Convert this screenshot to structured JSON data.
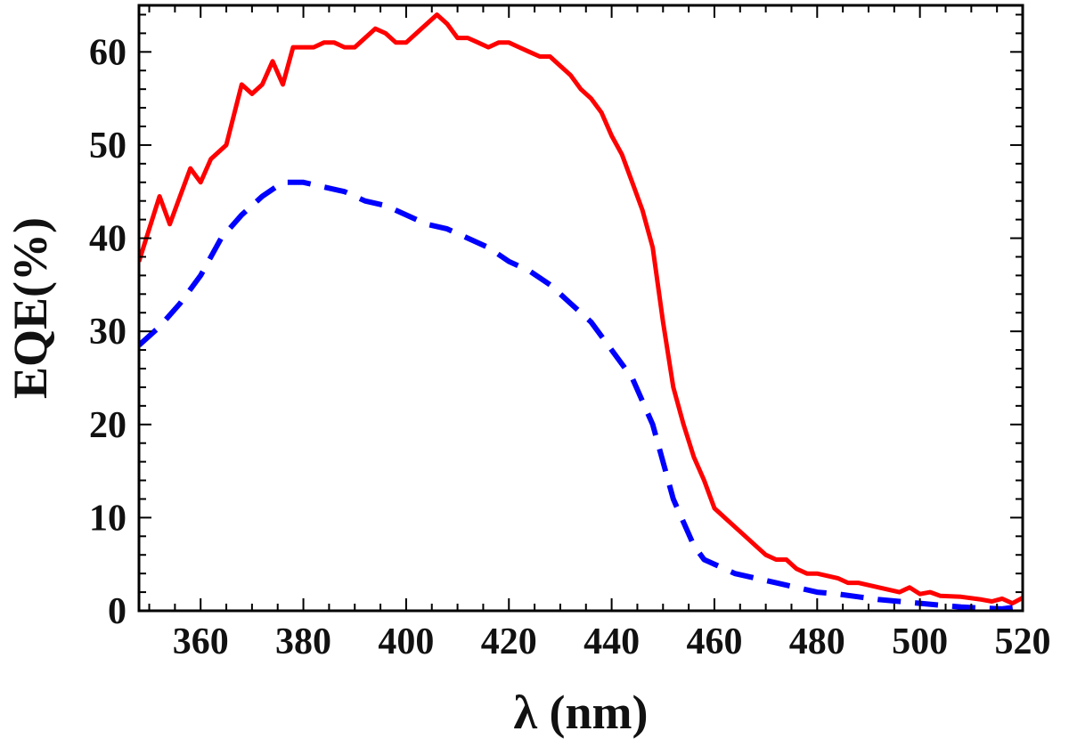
{
  "chart_data": {
    "type": "line",
    "title": "",
    "xlabel": "λ (nm)",
    "ylabel": "EQE(%)",
    "xlim": [
      348,
      520
    ],
    "ylim": [
      0,
      65
    ],
    "xticks": [
      360,
      380,
      400,
      420,
      440,
      460,
      480,
      500,
      520
    ],
    "yticks": [
      0,
      10,
      20,
      30,
      40,
      50,
      60
    ],
    "grid": false,
    "legend": "none",
    "series": [
      {
        "color": "#ff0000",
        "style": "solid",
        "points": [
          [
            348,
            37.5
          ],
          [
            350,
            41
          ],
          [
            352,
            44.5
          ],
          [
            354,
            41.5
          ],
          [
            356,
            44.5
          ],
          [
            358,
            47.5
          ],
          [
            360,
            46
          ],
          [
            362,
            48.5
          ],
          [
            365,
            50
          ],
          [
            368,
            56.5
          ],
          [
            370,
            55.5
          ],
          [
            372,
            56.5
          ],
          [
            374,
            59
          ],
          [
            376,
            56.5
          ],
          [
            378,
            60.5
          ],
          [
            380,
            60.5
          ],
          [
            382,
            60.5
          ],
          [
            384,
            61
          ],
          [
            386,
            61
          ],
          [
            388,
            60.5
          ],
          [
            390,
            60.5
          ],
          [
            392,
            61.5
          ],
          [
            394,
            62.5
          ],
          [
            396,
            62
          ],
          [
            398,
            61
          ],
          [
            400,
            61
          ],
          [
            402,
            62
          ],
          [
            404,
            63
          ],
          [
            406,
            64
          ],
          [
            408,
            63
          ],
          [
            410,
            61.5
          ],
          [
            412,
            61.5
          ],
          [
            414,
            61
          ],
          [
            416,
            60.5
          ],
          [
            418,
            61
          ],
          [
            420,
            61
          ],
          [
            422,
            60.5
          ],
          [
            424,
            60
          ],
          [
            426,
            59.5
          ],
          [
            428,
            59.5
          ],
          [
            430,
            58.5
          ],
          [
            432,
            57.5
          ],
          [
            434,
            56
          ],
          [
            436,
            55
          ],
          [
            438,
            53.5
          ],
          [
            440,
            51
          ],
          [
            442,
            49
          ],
          [
            444,
            46
          ],
          [
            446,
            43
          ],
          [
            448,
            39
          ],
          [
            450,
            31
          ],
          [
            452,
            24
          ],
          [
            454,
            20
          ],
          [
            456,
            16.5
          ],
          [
            458,
            14
          ],
          [
            460,
            11
          ],
          [
            462,
            10
          ],
          [
            464,
            9
          ],
          [
            466,
            8
          ],
          [
            468,
            7
          ],
          [
            470,
            6
          ],
          [
            472,
            5.5
          ],
          [
            474,
            5.5
          ],
          [
            476,
            4.5
          ],
          [
            478,
            4
          ],
          [
            480,
            4
          ],
          [
            484,
            3.5
          ],
          [
            486,
            3
          ],
          [
            488,
            3
          ],
          [
            492,
            2.5
          ],
          [
            496,
            2
          ],
          [
            498,
            2.5
          ],
          [
            500,
            1.8
          ],
          [
            502,
            2
          ],
          [
            504,
            1.6
          ],
          [
            508,
            1.5
          ],
          [
            512,
            1.2
          ],
          [
            514,
            1
          ],
          [
            516,
            1.3
          ],
          [
            518,
            0.8
          ],
          [
            520,
            1.4
          ]
        ]
      },
      {
        "color": "#0000ff",
        "style": "dashed",
        "points": [
          [
            348,
            28.5
          ],
          [
            352,
            30.5
          ],
          [
            356,
            33
          ],
          [
            360,
            36
          ],
          [
            364,
            40
          ],
          [
            368,
            42.5
          ],
          [
            372,
            44.5
          ],
          [
            376,
            46
          ],
          [
            380,
            46
          ],
          [
            384,
            45.5
          ],
          [
            388,
            45
          ],
          [
            392,
            44
          ],
          [
            396,
            43.5
          ],
          [
            400,
            42.5
          ],
          [
            404,
            41.5
          ],
          [
            408,
            41
          ],
          [
            412,
            40
          ],
          [
            416,
            39
          ],
          [
            420,
            37.5
          ],
          [
            424,
            36.5
          ],
          [
            428,
            35
          ],
          [
            432,
            33
          ],
          [
            436,
            31
          ],
          [
            440,
            28
          ],
          [
            444,
            25
          ],
          [
            448,
            20
          ],
          [
            452,
            12
          ],
          [
            454,
            9.5
          ],
          [
            456,
            7
          ],
          [
            458,
            5.5
          ],
          [
            460,
            5
          ],
          [
            462,
            4.5
          ],
          [
            464,
            4
          ],
          [
            468,
            3.5
          ],
          [
            472,
            3
          ],
          [
            476,
            2.5
          ],
          [
            480,
            2
          ],
          [
            484,
            1.8
          ],
          [
            488,
            1.5
          ],
          [
            492,
            1.2
          ],
          [
            496,
            1
          ],
          [
            500,
            0.8
          ],
          [
            504,
            0.6
          ],
          [
            508,
            0.4
          ],
          [
            512,
            0.3
          ],
          [
            516,
            0.2
          ],
          [
            520,
            0.5
          ]
        ]
      }
    ]
  }
}
